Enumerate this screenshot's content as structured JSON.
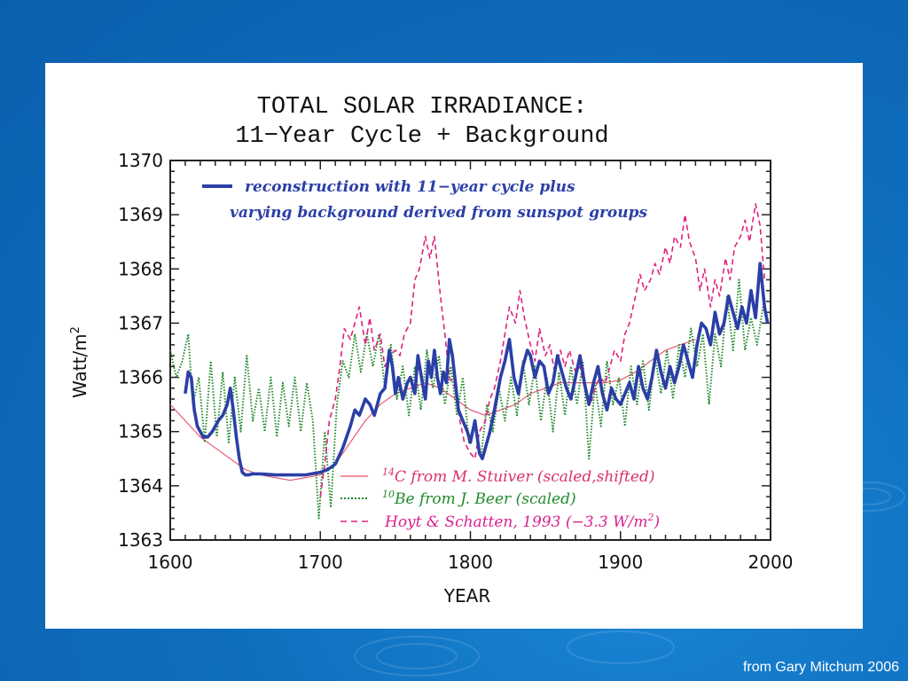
{
  "slide": {
    "credit": "from Gary Mitchum 2006",
    "colors": {
      "background": "#0f6fbf",
      "panel": "#ffffff"
    }
  },
  "chart_data": {
    "type": "line",
    "title": "TOTAL SOLAR IRRADIANCE:",
    "subtitle": "11−Year Cycle + Background",
    "xlabel": "YEAR",
    "ylabel": "Watt/m",
    "ylabel_sup": "2",
    "xlim": [
      1600,
      2000
    ],
    "ylim": [
      1363,
      1370
    ],
    "xticks": [
      1600,
      1700,
      1800,
      1900,
      2000
    ],
    "yticks": [
      1363,
      1364,
      1365,
      1366,
      1367,
      1368,
      1369,
      1370
    ],
    "grid": false,
    "legend_top": {
      "line1": "reconstruction with 11−year cycle plus",
      "line2": "varying background derived from sunspot groups",
      "color": "#2b3fa6"
    },
    "legend_bottom": [
      {
        "sup": "14",
        "text": "C from M. Stuiver (scaled,shifted)",
        "color": "#e0405a"
      },
      {
        "sup": "10",
        "text": "Be from J. Beer (scaled)",
        "color": "#208a2a"
      },
      {
        "text_a": "Hoyt & Schatten, 1993 (−3.3 W/m",
        "sup": "2",
        "text_b": ")",
        "color": "#d9208f"
      }
    ],
    "series": [
      {
        "name": "reconstruction with 11−year cycle plus varying background derived from sunspot groups",
        "color": "#2b3fa6",
        "style": "solid-thick",
        "x": [
          1610,
          1612,
          1614,
          1616,
          1618,
          1620,
          1622,
          1625,
          1628,
          1632,
          1635,
          1638,
          1640,
          1642,
          1644,
          1646,
          1648,
          1650,
          1652,
          1655,
          1660,
          1670,
          1680,
          1690,
          1700,
          1705,
          1710,
          1715,
          1720,
          1723,
          1726,
          1730,
          1733,
          1736,
          1740,
          1743,
          1746,
          1748,
          1750,
          1752,
          1755,
          1758,
          1760,
          1763,
          1765,
          1768,
          1770,
          1772,
          1774,
          1776,
          1778,
          1780,
          1782,
          1784,
          1786,
          1788,
          1790,
          1792,
          1795,
          1798,
          1800,
          1803,
          1806,
          1808,
          1810,
          1813,
          1816,
          1818,
          1820,
          1823,
          1826,
          1829,
          1832,
          1835,
          1838,
          1840,
          1843,
          1846,
          1849,
          1852,
          1855,
          1858,
          1861,
          1864,
          1867,
          1870,
          1873,
          1876,
          1879,
          1882,
          1885,
          1888,
          1891,
          1894,
          1897,
          1900,
          1903,
          1906,
          1909,
          1912,
          1915,
          1918,
          1921,
          1924,
          1927,
          1930,
          1933,
          1936,
          1939,
          1942,
          1945,
          1948,
          1951,
          1954,
          1957,
          1960,
          1963,
          1966,
          1969,
          1972,
          1975,
          1978,
          1981,
          1984,
          1987,
          1990,
          1993,
          1996,
          1998
        ],
        "y": [
          1365.7,
          1366.1,
          1366.0,
          1365.4,
          1365.1,
          1365.0,
          1364.9,
          1364.9,
          1365.0,
          1365.2,
          1365.3,
          1365.5,
          1365.8,
          1365.4,
          1364.9,
          1364.5,
          1364.25,
          1364.2,
          1364.2,
          1364.22,
          1364.22,
          1364.2,
          1364.2,
          1364.2,
          1364.25,
          1364.3,
          1364.4,
          1364.7,
          1365.1,
          1365.4,
          1365.3,
          1365.6,
          1365.5,
          1365.3,
          1365.7,
          1365.8,
          1366.5,
          1366.2,
          1365.7,
          1366.0,
          1365.6,
          1365.9,
          1366.0,
          1365.7,
          1366.4,
          1365.9,
          1365.6,
          1366.3,
          1366.0,
          1366.5,
          1366.0,
          1365.7,
          1366.1,
          1365.9,
          1366.7,
          1366.4,
          1365.9,
          1365.4,
          1365.2,
          1365.0,
          1364.8,
          1365.2,
          1364.6,
          1364.5,
          1364.7,
          1365.0,
          1365.4,
          1365.7,
          1366.0,
          1366.3,
          1366.7,
          1366.0,
          1365.7,
          1366.2,
          1366.5,
          1366.4,
          1366.0,
          1366.3,
          1366.2,
          1365.7,
          1365.9,
          1366.4,
          1366.1,
          1365.8,
          1365.6,
          1366.0,
          1366.4,
          1365.9,
          1365.5,
          1365.9,
          1366.2,
          1365.7,
          1365.4,
          1365.8,
          1365.6,
          1365.5,
          1365.7,
          1365.9,
          1365.6,
          1366.2,
          1365.8,
          1365.6,
          1366.0,
          1366.5,
          1366.1,
          1365.8,
          1366.2,
          1365.9,
          1366.2,
          1366.6,
          1366.3,
          1366.0,
          1366.6,
          1367.0,
          1366.9,
          1366.6,
          1367.2,
          1366.8,
          1367.0,
          1367.5,
          1367.2,
          1366.9,
          1367.3,
          1367.0,
          1367.6,
          1367.1,
          1368.1,
          1367.3,
          1367.0
        ],
        "note": "values estimated from plot"
      },
      {
        "name": "14C from M. Stuiver (scaled,shifted)",
        "color": "#e8506a",
        "style": "thin",
        "x": [
          1600,
          1610,
          1620,
          1630,
          1640,
          1650,
          1660,
          1670,
          1680,
          1690,
          1700,
          1710,
          1720,
          1730,
          1740,
          1750,
          1760,
          1770,
          1780,
          1790,
          1800,
          1810,
          1820,
          1830,
          1840,
          1850,
          1860,
          1870,
          1880,
          1890,
          1900,
          1910,
          1920,
          1930,
          1940,
          1950
        ],
        "y": [
          1365.5,
          1365.2,
          1364.9,
          1364.7,
          1364.5,
          1364.3,
          1364.2,
          1364.15,
          1364.1,
          1364.15,
          1364.2,
          1364.4,
          1364.8,
          1365.2,
          1365.5,
          1365.7,
          1365.8,
          1365.9,
          1365.8,
          1365.6,
          1365.4,
          1365.3,
          1365.4,
          1365.5,
          1365.7,
          1365.8,
          1365.9,
          1365.9,
          1365.9,
          1365.9,
          1365.95,
          1366.1,
          1366.3,
          1366.5,
          1366.6,
          1366.7
        ]
      },
      {
        "name": "10Be from J. Beer (scaled)",
        "color": "#208a2a",
        "style": "dotted",
        "x": [
          1600,
          1604,
          1608,
          1612,
          1615,
          1619,
          1623,
          1627,
          1631,
          1635,
          1639,
          1643,
          1647,
          1651,
          1655,
          1659,
          1663,
          1667,
          1671,
          1675,
          1679,
          1683,
          1687,
          1691,
          1695,
          1699,
          1703,
          1707,
          1711,
          1715,
          1719,
          1723,
          1727,
          1731,
          1735,
          1739,
          1743,
          1747,
          1751,
          1755,
          1759,
          1763,
          1767,
          1771,
          1775,
          1779,
          1783,
          1787,
          1791,
          1795,
          1799,
          1803,
          1807,
          1811,
          1815,
          1819,
          1823,
          1827,
          1831,
          1835,
          1839,
          1843,
          1847,
          1851,
          1855,
          1859,
          1863,
          1867,
          1871,
          1875,
          1879,
          1883,
          1887,
          1891,
          1895,
          1899,
          1903,
          1907,
          1911,
          1915,
          1919,
          1923,
          1927,
          1931,
          1935,
          1939,
          1943,
          1947,
          1951,
          1955,
          1959,
          1963,
          1967,
          1971,
          1975,
          1979,
          1983,
          1987,
          1991,
          1995
        ],
        "y": [
          1366.5,
          1366.0,
          1366.3,
          1366.8,
          1365.5,
          1366.0,
          1364.8,
          1366.3,
          1364.9,
          1366.1,
          1364.8,
          1366.0,
          1365.0,
          1366.4,
          1365.2,
          1365.8,
          1365.0,
          1366.0,
          1364.9,
          1365.9,
          1365.1,
          1366.0,
          1365.0,
          1365.9,
          1365.2,
          1363.4,
          1365.0,
          1363.6,
          1365.5,
          1366.3,
          1366.0,
          1366.8,
          1366.1,
          1366.8,
          1366.2,
          1366.8,
          1365.8,
          1366.6,
          1365.6,
          1366.2,
          1365.3,
          1366.2,
          1365.4,
          1366.5,
          1365.8,
          1366.4,
          1365.5,
          1366.2,
          1365.3,
          1366.0,
          1364.8,
          1365.2,
          1364.5,
          1365.5,
          1365.0,
          1365.8,
          1365.2,
          1366.0,
          1365.3,
          1366.3,
          1365.5,
          1366.2,
          1365.2,
          1366.0,
          1365.0,
          1366.1,
          1365.3,
          1366.2,
          1365.5,
          1366.3,
          1364.5,
          1365.9,
          1365.1,
          1366.3,
          1365.5,
          1366.0,
          1365.1,
          1366.2,
          1365.5,
          1366.3,
          1365.4,
          1366.4,
          1365.7,
          1366.5,
          1365.6,
          1366.6,
          1366.0,
          1366.9,
          1366.2,
          1366.8,
          1365.5,
          1366.8,
          1366.2,
          1367.5,
          1366.5,
          1367.8,
          1366.5,
          1367.1,
          1366.6,
          1367.3
        ]
      },
      {
        "name": "Hoyt & Schatten, 1993 (−3.3 W/m2)",
        "color": "#e0207f",
        "style": "dashed",
        "x": [
          1700,
          1703,
          1706,
          1710,
          1713,
          1716,
          1720,
          1723,
          1726,
          1730,
          1733,
          1736,
          1740,
          1743,
          1746,
          1750,
          1753,
          1756,
          1760,
          1763,
          1766,
          1770,
          1773,
          1776,
          1780,
          1783,
          1786,
          1790,
          1793,
          1796,
          1800,
          1803,
          1806,
          1810,
          1813,
          1816,
          1820,
          1823,
          1826,
          1830,
          1833,
          1836,
          1840,
          1843,
          1846,
          1850,
          1853,
          1856,
          1860,
          1863,
          1866,
          1870,
          1873,
          1876,
          1880,
          1883,
          1886,
          1890,
          1893,
          1896,
          1900,
          1903,
          1906,
          1910,
          1913,
          1916,
          1920,
          1923,
          1926,
          1930,
          1933,
          1936,
          1940,
          1943,
          1946,
          1950,
          1953,
          1956,
          1960,
          1963,
          1966,
          1970,
          1973,
          1976,
          1980,
          1983,
          1986,
          1990,
          1993,
          1996
        ],
        "y": [
          1363.8,
          1364.4,
          1365.2,
          1365.6,
          1366.2,
          1366.9,
          1366.7,
          1367.0,
          1367.3,
          1366.6,
          1367.1,
          1366.5,
          1366.8,
          1366.2,
          1366.4,
          1366.5,
          1366.4,
          1366.8,
          1367.0,
          1367.8,
          1368.0,
          1368.6,
          1368.2,
          1368.6,
          1367.5,
          1366.8,
          1366.0,
          1365.8,
          1365.2,
          1364.8,
          1364.6,
          1364.5,
          1365.0,
          1365.2,
          1365.6,
          1365.8,
          1366.3,
          1366.8,
          1367.3,
          1367.0,
          1367.6,
          1367.1,
          1366.6,
          1366.3,
          1366.9,
          1366.4,
          1366.6,
          1366.1,
          1366.5,
          1366.2,
          1366.5,
          1366.1,
          1366.2,
          1365.8,
          1365.5,
          1365.8,
          1366.0,
          1365.9,
          1366.2,
          1366.5,
          1366.3,
          1366.8,
          1367.0,
          1367.5,
          1367.9,
          1367.6,
          1367.8,
          1368.1,
          1367.9,
          1368.4,
          1368.1,
          1368.6,
          1368.4,
          1369.0,
          1368.5,
          1368.2,
          1367.6,
          1368.0,
          1367.3,
          1367.8,
          1367.5,
          1368.2,
          1367.8,
          1368.4,
          1368.6,
          1368.9,
          1368.5,
          1369.2,
          1368.8,
          1367.8
        ]
      }
    ]
  }
}
